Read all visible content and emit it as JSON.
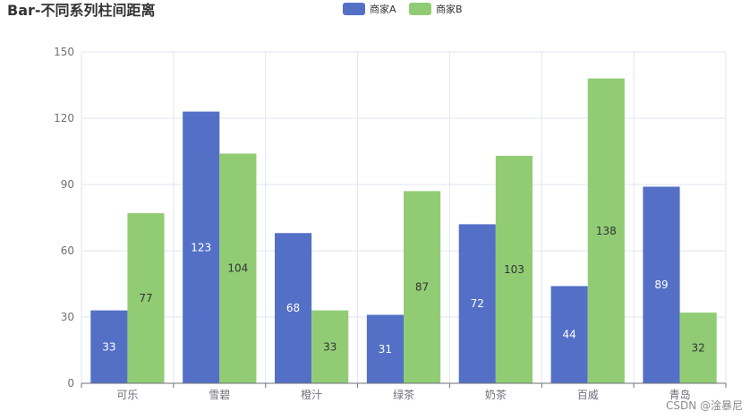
{
  "chart_data": {
    "type": "bar",
    "title": "Bar-不同系列柱间距离",
    "categories": [
      "可乐",
      "雪碧",
      "橙汁",
      "绿茶",
      "奶茶",
      "百威",
      "青岛"
    ],
    "series": [
      {
        "name": "商家A",
        "values": [
          33,
          123,
          68,
          31,
          72,
          44,
          89
        ],
        "color": "#5470c6",
        "label_color": "#ffffff"
      },
      {
        "name": "商家B",
        "values": [
          77,
          104,
          33,
          87,
          103,
          138,
          32
        ],
        "color": "#91cc75",
        "label_color": "#333333"
      }
    ],
    "ylim": [
      0,
      150
    ],
    "yticks": [
      0,
      30,
      60,
      90,
      120,
      150
    ],
    "legend_position": "top-center",
    "grid": true,
    "show_bar_labels": true,
    "label_position": "inside"
  },
  "colors": {
    "axis": "#6e7079",
    "grid": "#e0e6f1",
    "title": "#333333"
  },
  "watermark": "CSDN @淦暴尼"
}
